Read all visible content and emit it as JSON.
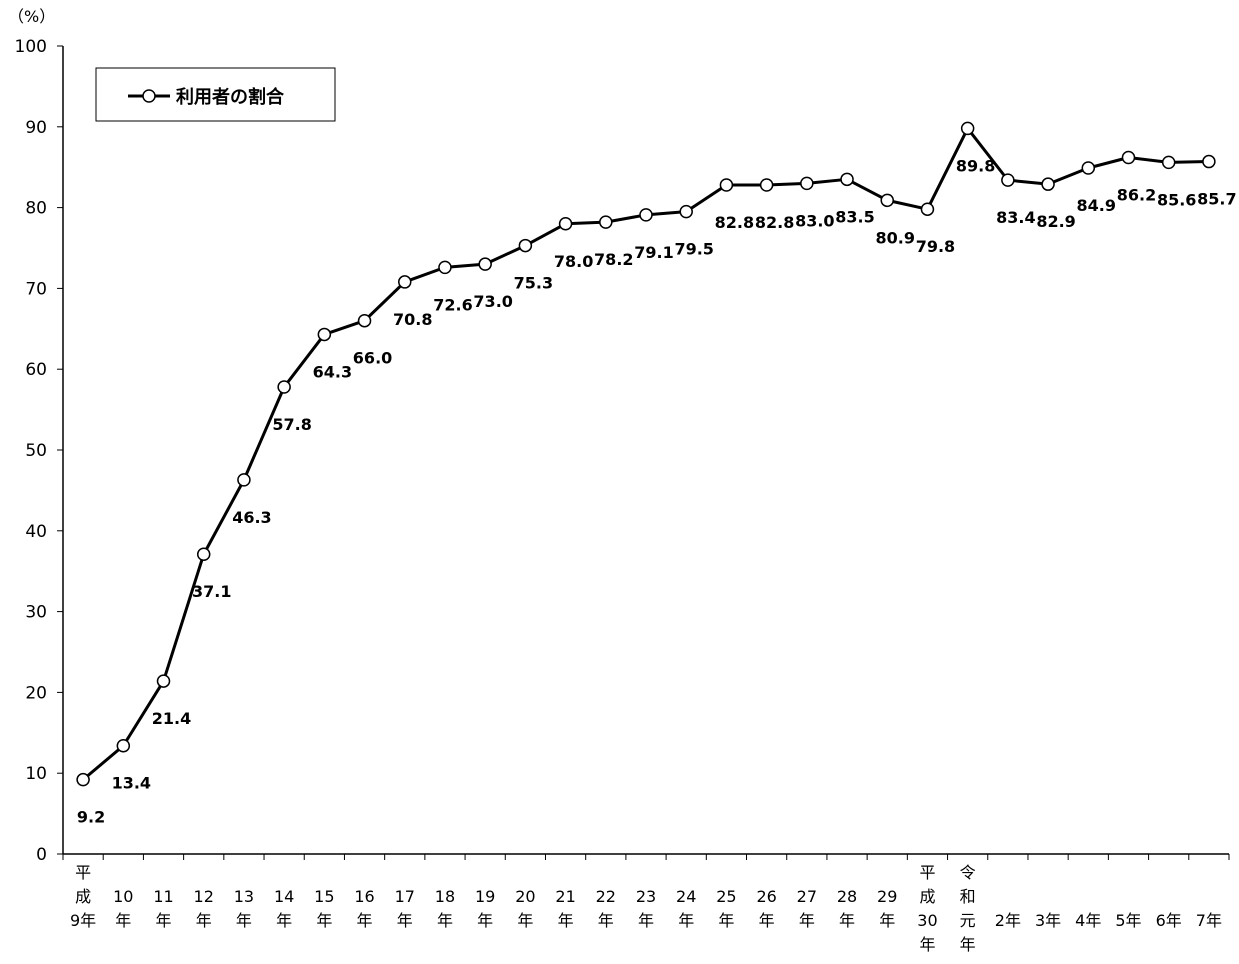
{
  "chart_data": {
    "type": "line",
    "y_unit": "（%）",
    "ylim": [
      0,
      100
    ],
    "y_ticks": [
      0,
      10,
      20,
      30,
      40,
      50,
      60,
      70,
      80,
      90,
      100
    ],
    "grid": false,
    "legend_position": "top-left",
    "categories": [
      [
        "平",
        "成",
        "9年"
      ],
      [
        "10",
        "年"
      ],
      [
        "11",
        "年"
      ],
      [
        "12",
        "年"
      ],
      [
        "13",
        "年"
      ],
      [
        "14",
        "年"
      ],
      [
        "15",
        "年"
      ],
      [
        "16",
        "年"
      ],
      [
        "17",
        "年"
      ],
      [
        "18",
        "年"
      ],
      [
        "19",
        "年"
      ],
      [
        "20",
        "年"
      ],
      [
        "21",
        "年"
      ],
      [
        "22",
        "年"
      ],
      [
        "23",
        "年"
      ],
      [
        "24",
        "年"
      ],
      [
        "25",
        "年"
      ],
      [
        "26",
        "年"
      ],
      [
        "27",
        "年"
      ],
      [
        "28",
        "年"
      ],
      [
        "29",
        "年"
      ],
      [
        "平",
        "成",
        "30",
        "年"
      ],
      [
        "令",
        "和",
        "元",
        "年"
      ],
      [
        "2年"
      ],
      [
        "3年"
      ],
      [
        "4年"
      ],
      [
        "5年"
      ],
      [
        "6年"
      ],
      [
        "7年"
      ]
    ],
    "series": [
      {
        "name": "利用者の割合",
        "values": [
          9.2,
          13.4,
          21.4,
          37.1,
          46.3,
          57.8,
          64.3,
          66.0,
          70.8,
          72.6,
          73.0,
          75.3,
          78.0,
          78.2,
          79.1,
          79.5,
          82.8,
          82.8,
          83.0,
          83.5,
          80.9,
          79.8,
          89.8,
          83.4,
          82.9,
          84.9,
          86.2,
          85.6,
          85.7
        ],
        "labels": [
          "9.2",
          "13.4",
          "21.4",
          "37.1",
          "46.3",
          "57.8",
          "64.3",
          "66.0",
          "70.8",
          "72.6",
          "73.0",
          "75.3",
          "78.0",
          "78.2",
          "79.1",
          "79.5",
          "82.8",
          "82.8",
          "83.0",
          "83.5",
          "80.9",
          "79.8",
          "89.8",
          "83.4",
          "82.9",
          "84.9",
          "86.2",
          "85.6",
          "85.7"
        ]
      }
    ]
  }
}
